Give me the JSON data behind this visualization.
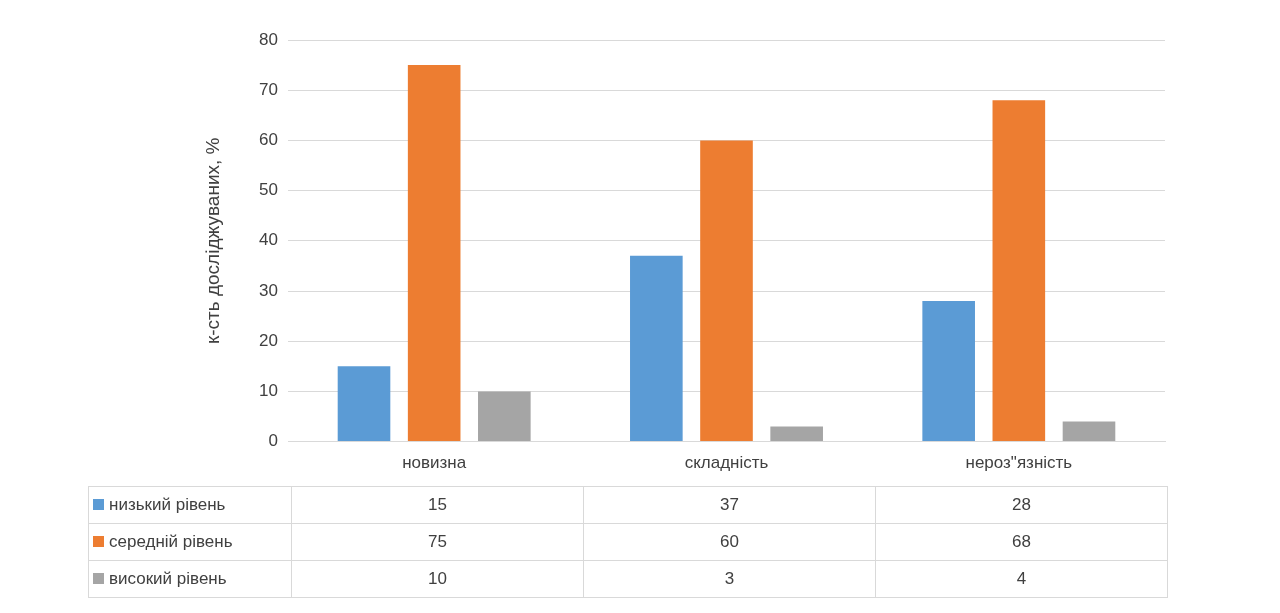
{
  "chart_data": {
    "type": "bar",
    "ylabel": "к-сть досліджуваних, %",
    "categories": [
      "новизна",
      "складність",
      "нероз\"язність"
    ],
    "series": [
      {
        "name": "низький рівень",
        "color": "#5b9bd5",
        "values": [
          15,
          37,
          28
        ]
      },
      {
        "name": "середній рівень",
        "color": "#ed7d31",
        "values": [
          75,
          60,
          68
        ]
      },
      {
        "name": "високий рівень",
        "color": "#a5a5a5",
        "values": [
          10,
          3,
          4
        ]
      }
    ],
    "ylim": [
      0,
      80
    ],
    "yticks": [
      0,
      10,
      20,
      30,
      40,
      50,
      60,
      70,
      80
    ],
    "grid": "y",
    "legend": "bottom",
    "data_labels": true
  }
}
